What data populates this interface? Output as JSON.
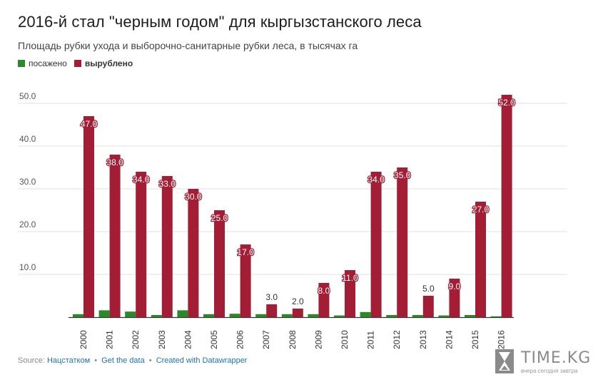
{
  "title": "2016-й стал \"черным годом\" для кыргызстанского леса",
  "subtitle": "Площадь рубки ухода и выборочно-санитарные рубки леса, в тысячах га",
  "legend": {
    "planted": "посажено",
    "cut": "вырублено"
  },
  "colors": {
    "planted": "#2a8a2a",
    "cut": "#a31e35",
    "grid": "#e2e2e2",
    "axis": "#333333",
    "label_bg": "#a31e35"
  },
  "footer": {
    "source_label": "Source:",
    "source_link": "Нацстатком",
    "get_data": "Get the data",
    "created_with": "Created with Datawrapper",
    "separator": "•"
  },
  "logo": {
    "name": "TIME.KG",
    "tagline": "вчера сегодня завтра"
  },
  "chart_data": {
    "type": "bar",
    "categories": [
      "2000",
      "2001",
      "2002",
      "2003",
      "2004",
      "2005",
      "2006",
      "2007",
      "2008",
      "2009",
      "2010",
      "2011",
      "2012",
      "2013",
      "2014",
      "2015",
      "2016"
    ],
    "series": [
      {
        "name": "посажено",
        "values": [
          0.7,
          1.6,
          1.3,
          0.5,
          1.6,
          0.7,
          0.8,
          0.7,
          0.7,
          0.7,
          0.4,
          1.2,
          0.5,
          0.5,
          0.4,
          0.5,
          0.2
        ]
      },
      {
        "name": "вырублено",
        "values": [
          47.0,
          38.0,
          34.0,
          33.0,
          30.0,
          25.0,
          17.0,
          3.0,
          2.0,
          8.0,
          11.0,
          34.0,
          35.0,
          5.0,
          9.0,
          27.0,
          52.0
        ]
      }
    ],
    "data_labels": [
      "47.0",
      "38.0",
      "34.0",
      "33.0",
      "30.0",
      "25.0",
      "17.0",
      "3.0",
      "2.0",
      "8.0",
      "11.0",
      "34.0",
      "35.0",
      "5.0",
      "9.0",
      "27.0",
      "52.0"
    ],
    "yticks": [
      "10.0",
      "20.0",
      "30.0",
      "40.0",
      "50.0"
    ],
    "ylim": [
      0,
      52
    ],
    "grid": true,
    "legend_position": "top-left"
  }
}
